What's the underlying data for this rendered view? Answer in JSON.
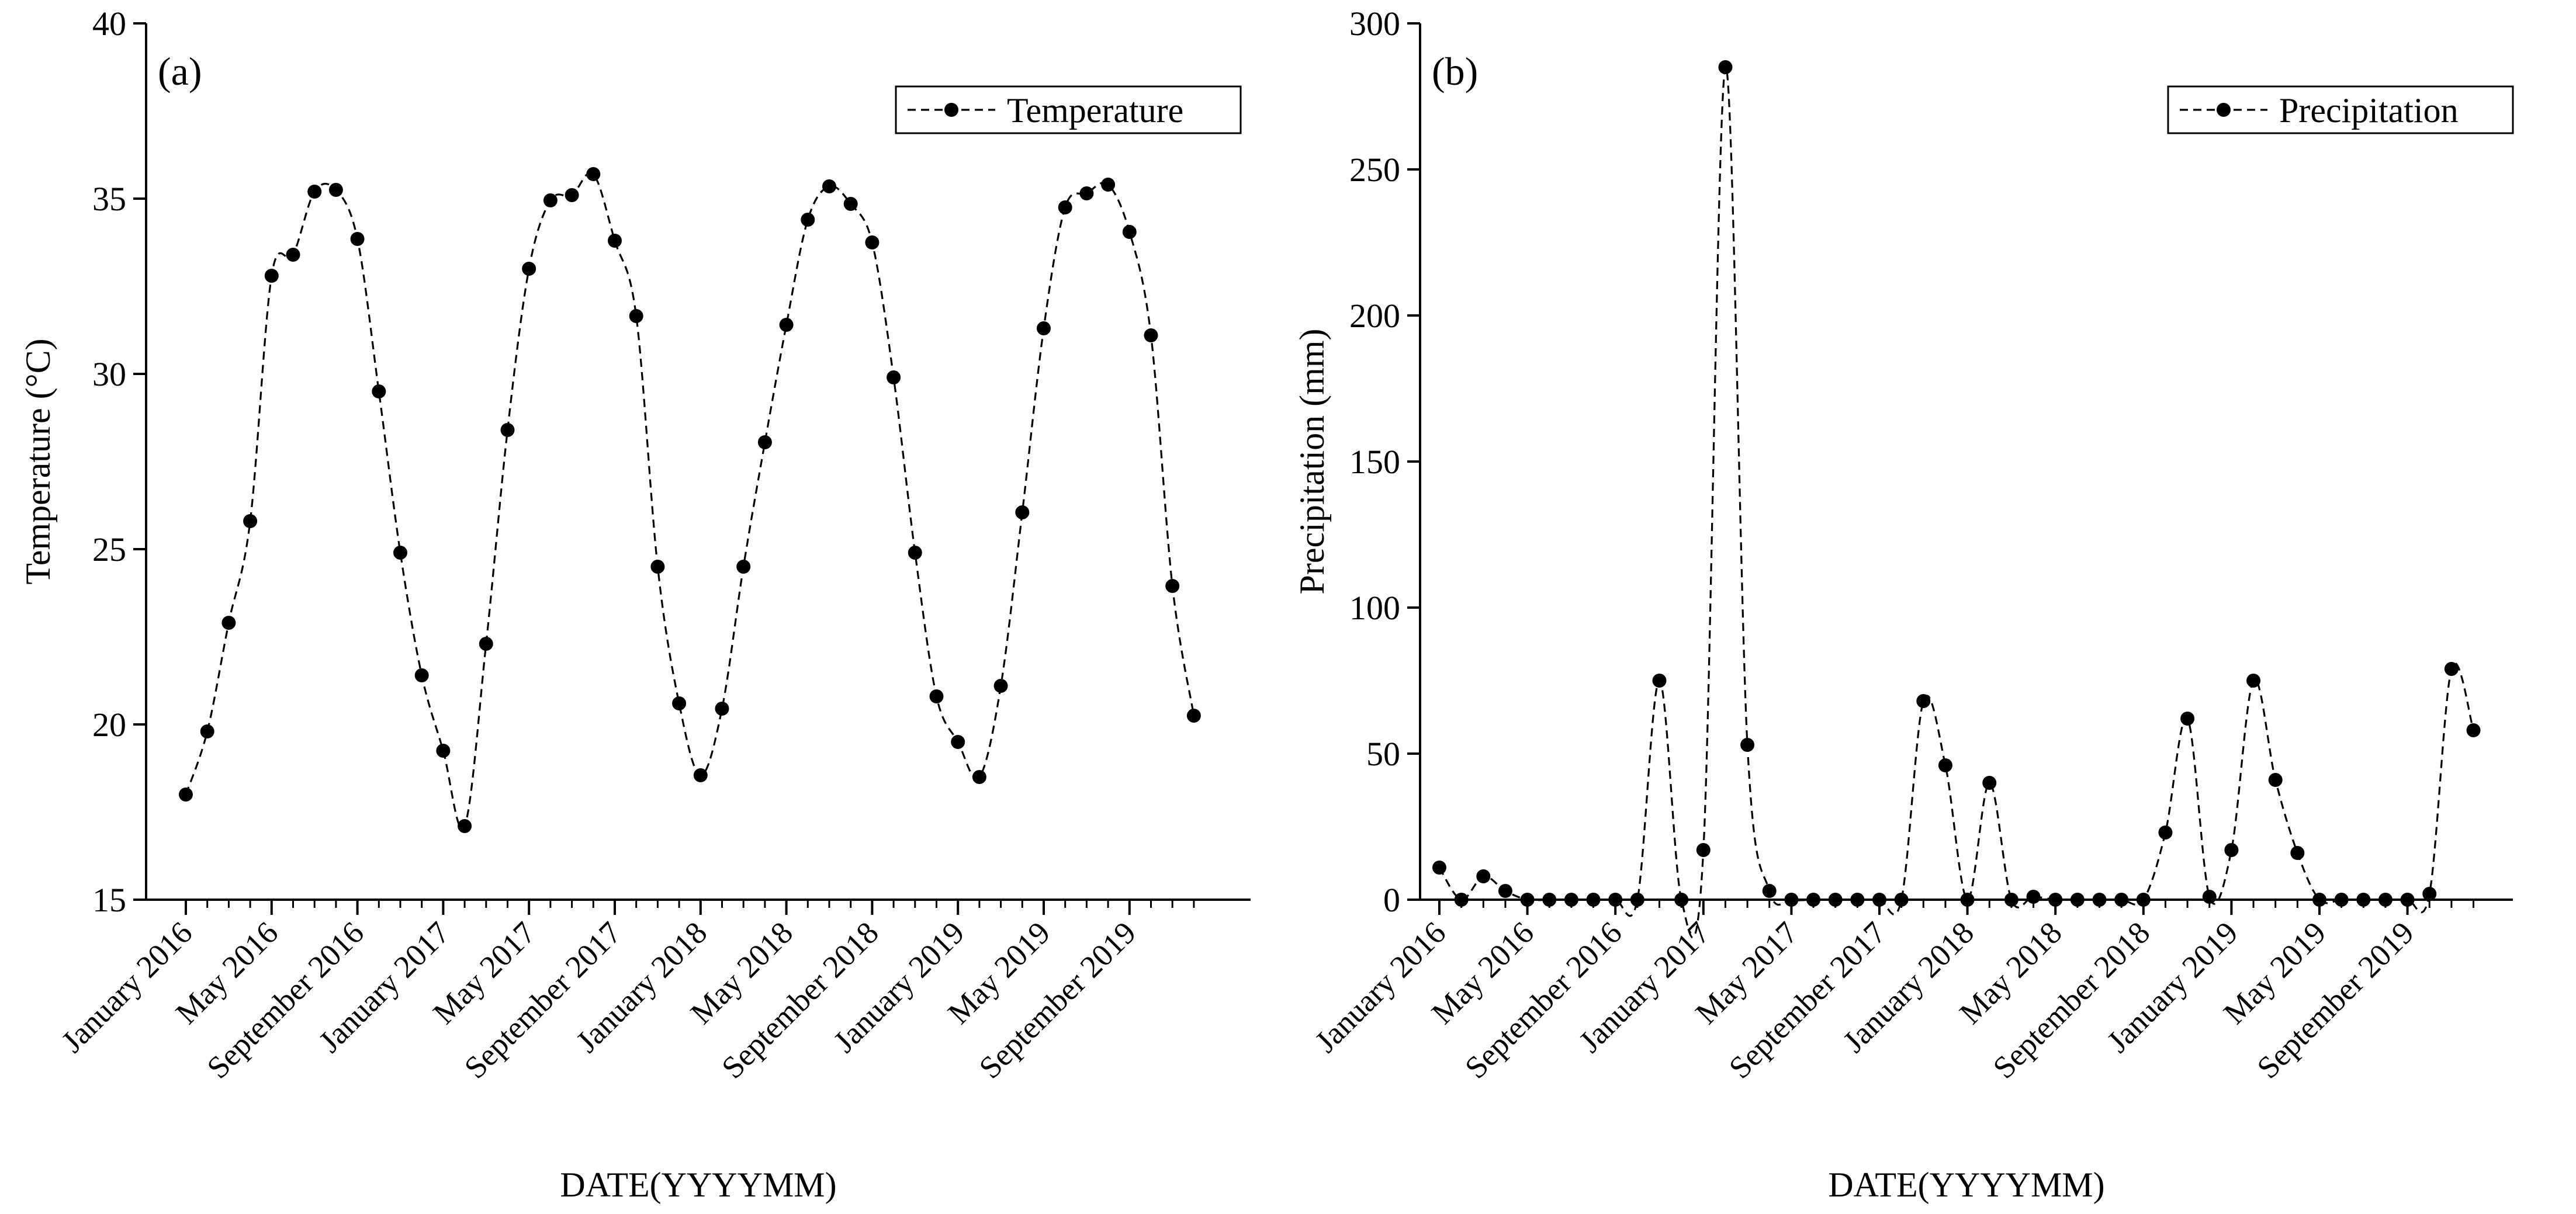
{
  "colors": {
    "line": "#000000",
    "background": "#ffffff"
  },
  "chart_data": [
    {
      "type": "line",
      "panel_label": "(a)",
      "xlabel": "DATE(YYYYMM)",
      "ylabel": "Temperature (°C)",
      "ylim": [
        15,
        40
      ],
      "yticks": [
        15,
        20,
        25,
        30,
        35,
        40
      ],
      "legend": {
        "label": "Temperature",
        "position": "top-right"
      },
      "xtick_labels": [
        "January 2016",
        "May 2016",
        "September 2016",
        "January 2017",
        "May 2017",
        "September 2017",
        "January 2018",
        "May 2018",
        "September 2018",
        "January 2019",
        "May 2019",
        "September 2019"
      ],
      "xtick_positions": [
        0,
        4,
        8,
        12,
        16,
        20,
        24,
        28,
        32,
        36,
        40,
        44
      ],
      "x_count": 48,
      "series": [
        {
          "name": "Temperature",
          "values": [
            18.0,
            19.8,
            22.9,
            25.8,
            32.8,
            33.4,
            35.2,
            35.25,
            33.85,
            29.5,
            24.9,
            21.4,
            19.25,
            17.1,
            22.3,
            28.4,
            33.0,
            34.95,
            35.1,
            35.7,
            33.8,
            31.65,
            24.5,
            20.6,
            18.55,
            20.45,
            24.5,
            28.05,
            31.4,
            34.4,
            35.35,
            34.85,
            33.75,
            29.9,
            24.9,
            20.8,
            19.5,
            18.5,
            21.1,
            26.05,
            31.3,
            34.75,
            35.15,
            35.4,
            34.05,
            31.1,
            23.95,
            20.25
          ]
        }
      ]
    },
    {
      "type": "line",
      "panel_label": "(b)",
      "xlabel": "DATE(YYYYMM)",
      "ylabel": "Precipitation (mm)",
      "ylim": [
        0,
        300
      ],
      "yticks": [
        0,
        50,
        100,
        150,
        200,
        250,
        300
      ],
      "legend": {
        "label": "Precipitation",
        "position": "top-right"
      },
      "xtick_labels": [
        "January 2016",
        "May 2016",
        "September 2016",
        "January 2017",
        "May 2017",
        "September 2017",
        "January 2018",
        "May 2018",
        "September 2018",
        "January 2019",
        "May 2019",
        "September 2019"
      ],
      "xtick_positions": [
        0,
        4,
        8,
        12,
        16,
        20,
        24,
        28,
        32,
        36,
        40,
        44
      ],
      "x_count": 48,
      "series": [
        {
          "name": "Precipitation",
          "values": [
            11,
            0,
            8,
            3,
            0,
            0,
            0,
            0,
            0,
            0,
            75,
            0,
            17,
            285,
            53,
            3,
            0,
            0,
            0,
            0,
            0,
            0,
            68,
            46,
            0,
            40,
            0,
            1,
            0,
            0,
            0,
            0,
            0,
            23,
            62,
            1,
            17,
            75,
            41,
            16,
            0,
            0,
            0,
            0,
            0,
            2,
            79,
            58
          ]
        }
      ]
    }
  ]
}
